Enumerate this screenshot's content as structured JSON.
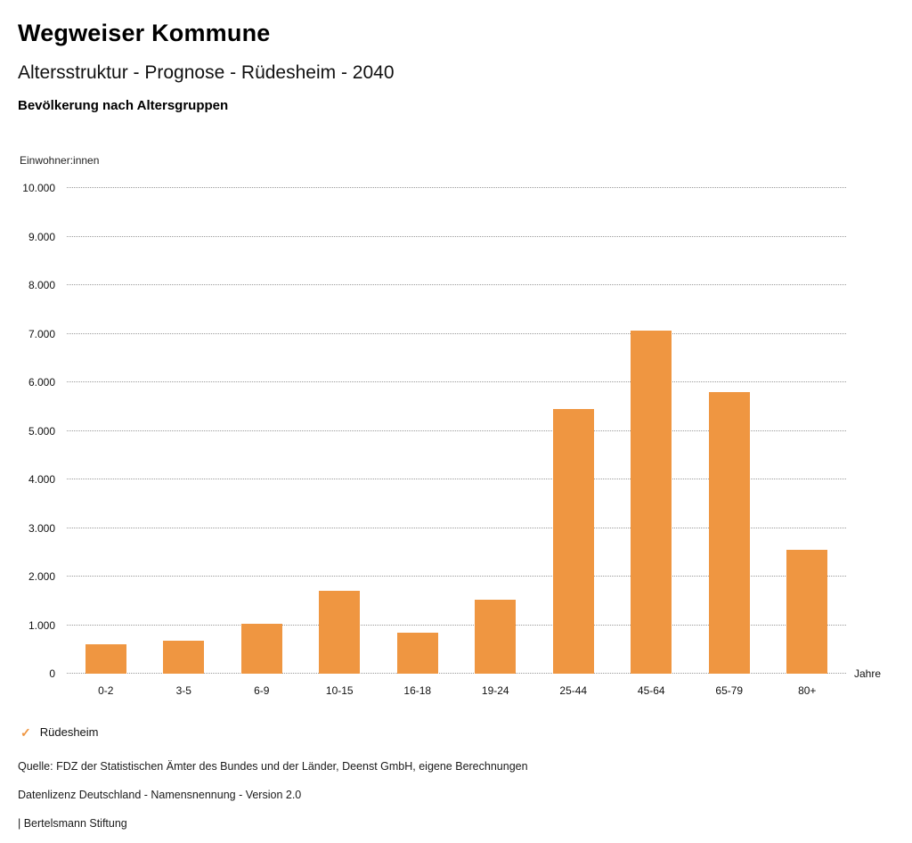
{
  "header": {
    "title": "Wegweiser Kommune",
    "subtitle": "Altersstruktur - Prognose - Rüdesheim - 2040",
    "chart_title": "Bevölkerung nach Altersgruppen"
  },
  "axes": {
    "y_unit": "Einwohner:innen",
    "x_unit": "Jahre"
  },
  "legend": {
    "check_icon": "✓",
    "label": "Rüdesheim"
  },
  "footer": {
    "line1": "Quelle: FDZ der Statistischen Ämter des Bundes und der Länder, Deenst GmbH, eigene Berechnungen",
    "line2": "Datenlizenz Deutschland - Namensnennung - Version 2.0",
    "line3": "| Bertelsmann Stiftung"
  },
  "colors": {
    "bar": "#EF9641",
    "grid": "#9a9a9a"
  },
  "chart_data": {
    "type": "bar",
    "title": "Bevölkerung nach Altersgruppen",
    "xlabel": "Jahre",
    "ylabel": "Einwohner:innen",
    "categories": [
      "0-2",
      "3-5",
      "6-9",
      "10-15",
      "16-18",
      "19-24",
      "25-44",
      "45-64",
      "65-79",
      "80+"
    ],
    "series": [
      {
        "name": "Rüdesheim",
        "values": [
          600,
          680,
          1030,
          1700,
          850,
          1520,
          5450,
          7070,
          5790,
          2550
        ]
      }
    ],
    "ylim": [
      0,
      10000
    ],
    "yticks": [
      0,
      1000,
      2000,
      3000,
      4000,
      5000,
      6000,
      7000,
      8000,
      9000,
      10000
    ],
    "ytick_labels": [
      "0",
      "1.000",
      "2.000",
      "3.000",
      "4.000",
      "5.000",
      "6.000",
      "7.000",
      "8.000",
      "9.000",
      "10.000"
    ],
    "bar_color": "#EF9641",
    "grid": "horizontal-dotted",
    "legend_position": "bottom-left"
  }
}
